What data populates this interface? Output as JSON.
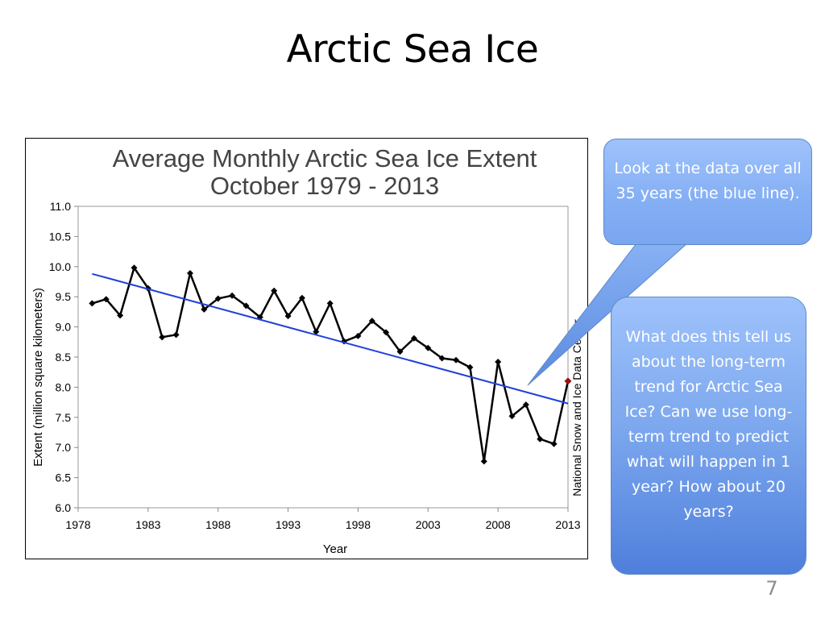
{
  "slide": {
    "title": "Arctic Sea Ice",
    "page_number": "7"
  },
  "callouts": {
    "top_text": "Look at the data over all 35 years (the blue line).",
    "bottom_text": "What does this tell us about the long-term trend for Arctic Sea Ice? Can we use long-term trend to predict what will happen in 1 year? How about 20 years?"
  },
  "chart_data": {
    "type": "line",
    "title": "Average Monthly Arctic Sea Ice Extent",
    "subtitle": "October 1979 - 2013",
    "xlabel": "Year",
    "ylabel": "Extent (million square kilometers)",
    "source": "National Snow and Ice Data Center",
    "xlim": [
      1978,
      2013
    ],
    "ylim": [
      6.0,
      11.0
    ],
    "xticks": [
      "1978",
      "1983",
      "1988",
      "1993",
      "1998",
      "2003",
      "2008",
      "2013"
    ],
    "yticks": [
      "6.0",
      "6.5",
      "7.0",
      "7.5",
      "8.0",
      "8.5",
      "9.0",
      "9.5",
      "10.0",
      "10.5",
      "11.0"
    ],
    "grid": false,
    "series": [
      {
        "color": "#000000",
        "marker": "diamond",
        "x": [
          1979,
          1980,
          1981,
          1982,
          1983,
          1984,
          1985,
          1986,
          1987,
          1988,
          1989,
          1990,
          1991,
          1992,
          1993,
          1994,
          1995,
          1996,
          1997,
          1998,
          1999,
          2000,
          2001,
          2002,
          2003,
          2004,
          2005,
          2006,
          2007,
          2008,
          2009,
          2010,
          2011,
          2012,
          2013
        ],
        "y": [
          9.39,
          9.46,
          9.19,
          9.98,
          9.64,
          8.83,
          8.87,
          9.89,
          9.29,
          9.47,
          9.52,
          9.35,
          9.16,
          9.6,
          9.18,
          9.48,
          8.92,
          9.39,
          8.76,
          8.85,
          9.1,
          8.91,
          8.59,
          8.81,
          8.65,
          8.48,
          8.45,
          8.33,
          6.77,
          8.42,
          7.52,
          7.71,
          7.14,
          7.06,
          8.1
        ]
      },
      {
        "color": "#1f3fdc",
        "marker": "none",
        "x": [
          1979,
          2013
        ],
        "y": [
          9.88,
          7.73
        ]
      }
    ],
    "highlight": {
      "x": 2013,
      "y": 8.1,
      "color": "#a01010"
    }
  }
}
